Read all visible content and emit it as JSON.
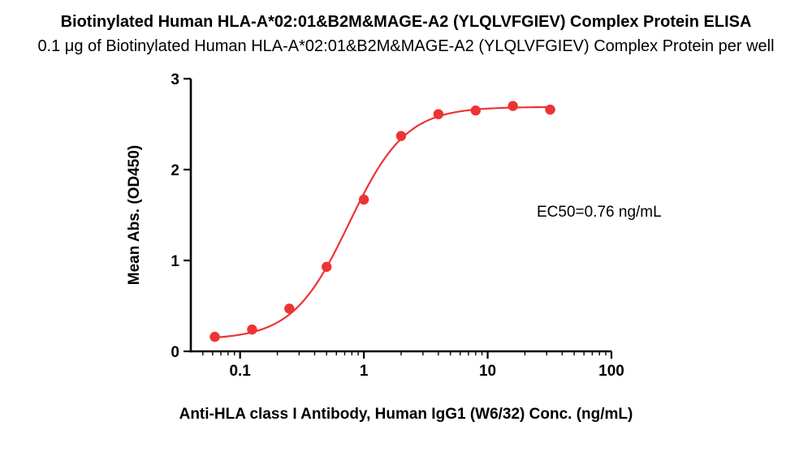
{
  "chart_data": {
    "type": "scatter",
    "title": "Biotinylated Human HLA-A*02:01&B2M&MAGE-A2 (YLQLVFGIEV) Complex Protein ELISA",
    "subtitle": "0.1 μg of Biotinylated Human HLA-A*02:01&B2M&MAGE-A2 (YLQLVFGIEV) Complex Protein per well",
    "xlabel": "Anti-HLA class I Antibody, Human IgG1 (W6/32) Conc. (ng/mL)",
    "ylabel": "Mean Abs. (OD450)",
    "annotation": "EC50=0.76 ng/mL",
    "x_scale": "log",
    "xlim": [
      0.04,
      100
    ],
    "ylim": [
      0,
      3
    ],
    "xticks": [
      0.1,
      1,
      10,
      100
    ],
    "xtick_labels": [
      "0.1",
      "1",
      "10",
      "100"
    ],
    "x_minor_ticks": [
      0.05,
      0.06,
      0.07,
      0.08,
      0.09,
      0.2,
      0.3,
      0.4,
      0.5,
      0.6,
      0.7,
      0.8,
      0.9,
      2,
      3,
      4,
      5,
      6,
      7,
      8,
      9,
      20,
      30,
      40,
      50,
      60,
      70,
      80,
      90
    ],
    "yticks": [
      0,
      1,
      2,
      3
    ],
    "ytick_labels": [
      "0",
      "1",
      "2",
      "3"
    ],
    "grid": false,
    "legend": "none",
    "points": [
      {
        "x": 0.0625,
        "y": 0.16
      },
      {
        "x": 0.125,
        "y": 0.24
      },
      {
        "x": 0.25,
        "y": 0.47
      },
      {
        "x": 0.5,
        "y": 0.93
      },
      {
        "x": 1,
        "y": 1.67
      },
      {
        "x": 2,
        "y": 2.37
      },
      {
        "x": 4,
        "y": 2.61
      },
      {
        "x": 8,
        "y": 2.65
      },
      {
        "x": 16,
        "y": 2.7
      },
      {
        "x": 32,
        "y": 2.66
      }
    ],
    "fit": {
      "model": "4PL",
      "bottom": 0.13,
      "top": 2.69,
      "ec50": 0.76,
      "hill": 1.9
    },
    "point_color": "#ee3333",
    "line_color": "#ee3333",
    "axis_color": "#000000"
  }
}
